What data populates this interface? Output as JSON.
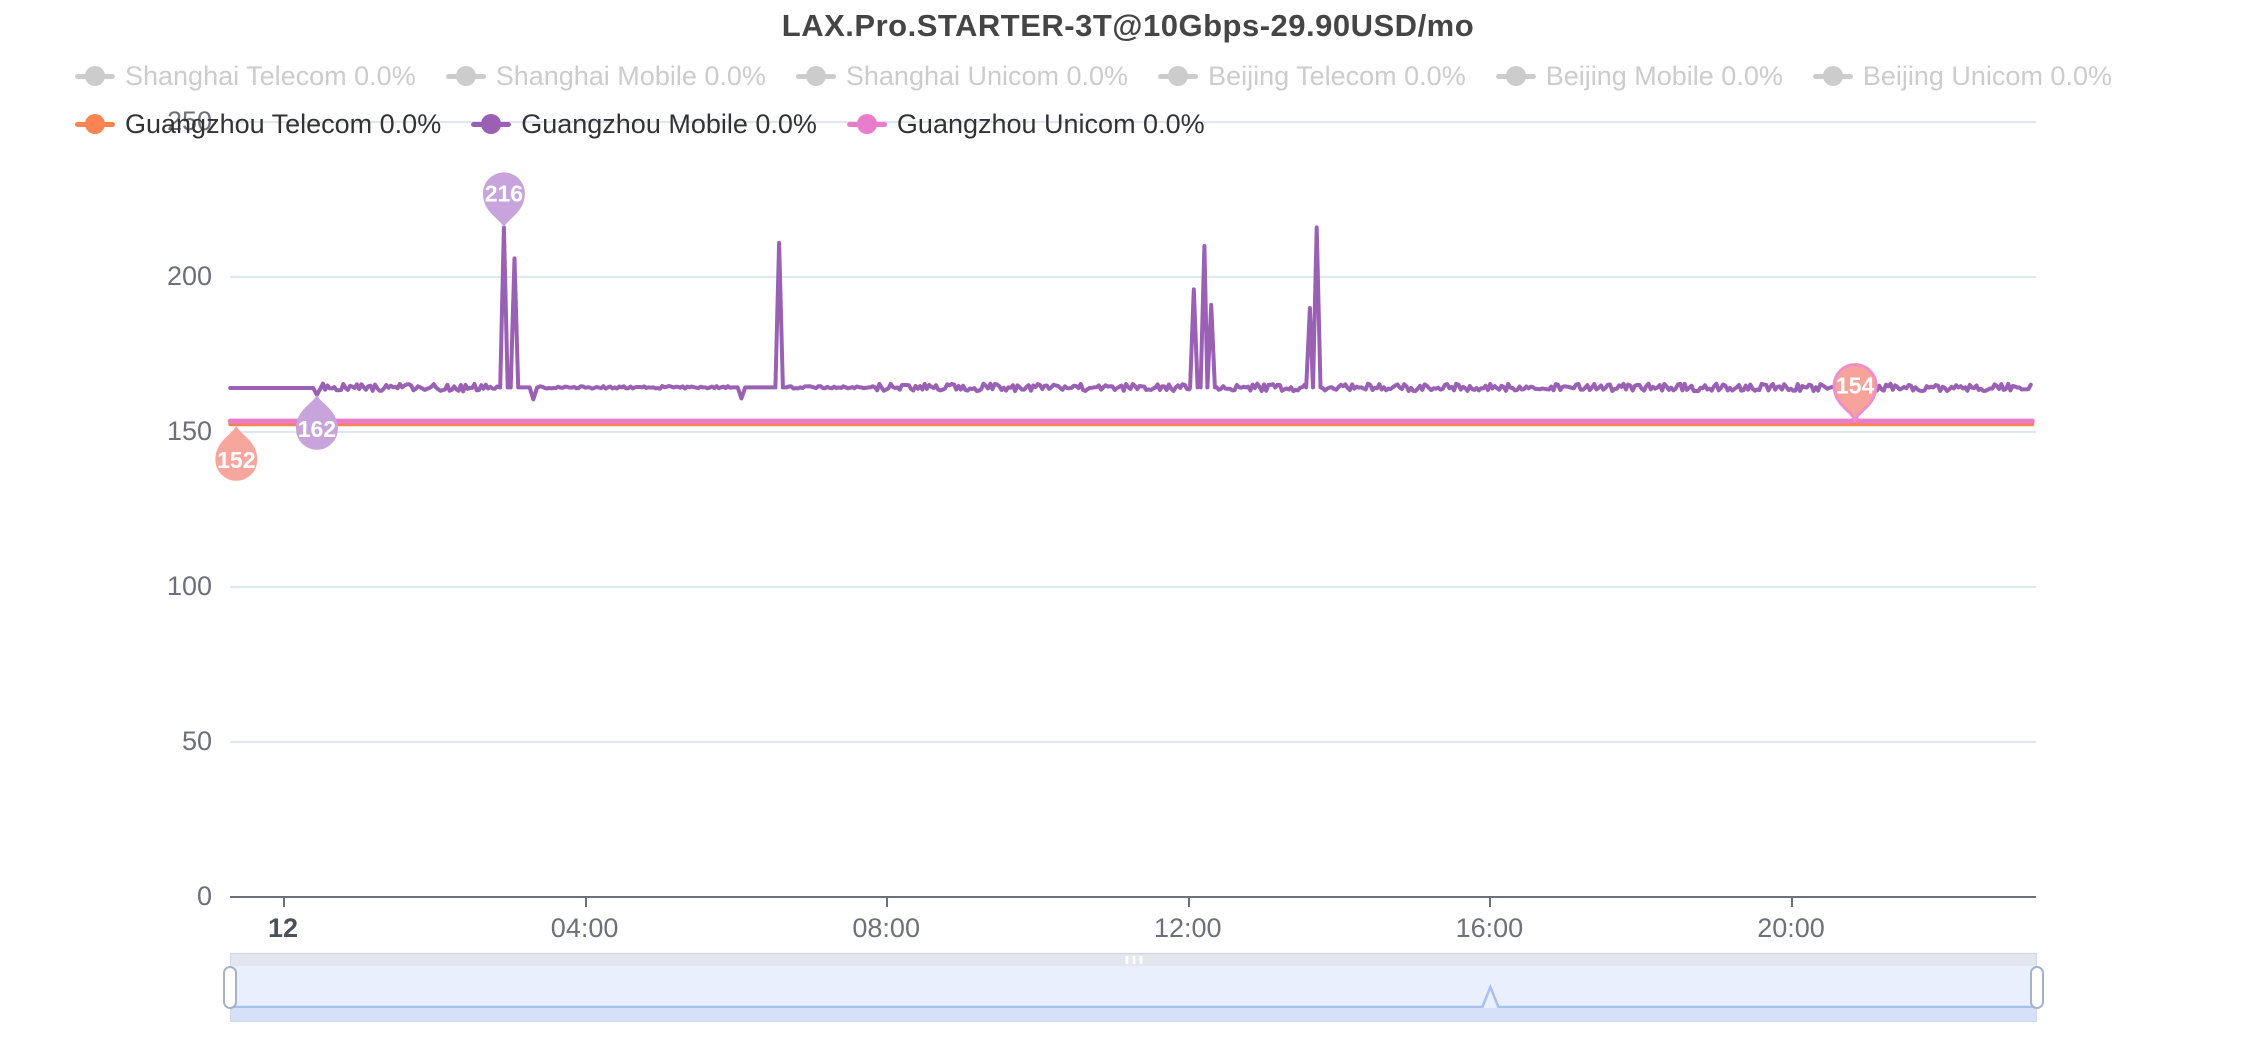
{
  "title": "LAX.Pro.STARTER-3T@10Gbps-29.90USD/mo",
  "colors": {
    "orange": "#fc8452",
    "purple": "#9a60b4",
    "pink": "#ea7ccc",
    "disabled": "#cccccc",
    "grid": "#e0e6f1",
    "axis": "#6e7079",
    "title_text": "#454545",
    "active_label": "#333333"
  },
  "legend": {
    "rows": [
      {
        "items": [
          {
            "label": "Shanghai Telecom 0.0%",
            "state": "disabled",
            "color": "#cccccc"
          },
          {
            "label": "Shanghai Mobile 0.0%",
            "state": "disabled",
            "color": "#cccccc"
          },
          {
            "label": "Shanghai Unicom 0.0%",
            "state": "disabled",
            "color": "#cccccc"
          },
          {
            "label": "Beijing Telecom 0.0%",
            "state": "disabled",
            "color": "#cccccc"
          },
          {
            "label": "Beijing Mobile 0.0%",
            "state": "disabled",
            "color": "#cccccc"
          },
          {
            "label": "Beijing Unicom 0.0%",
            "state": "disabled",
            "color": "#cccccc"
          }
        ]
      },
      {
        "items": [
          {
            "label": "Guangzhou Telecom 0.0%",
            "state": "active",
            "color": "#fc8452"
          },
          {
            "label": "Guangzhou Mobile 0.0%",
            "state": "active",
            "color": "#9a60b4"
          },
          {
            "label": "Guangzhou Unicom 0.0%",
            "state": "active",
            "color": "#ea7ccc"
          }
        ]
      }
    ]
  },
  "chart_data": {
    "type": "line",
    "title": "LAX.Pro.STARTER-3T@10Gbps-29.90USD/mo",
    "grid": true,
    "legend_position": "top",
    "y_axis": {
      "ticks": [
        0,
        50,
        100,
        150,
        200,
        250
      ],
      "range": [
        0,
        250
      ]
    },
    "x_axis": {
      "range_hours": [
        -0.7,
        23.2
      ],
      "ticks": [
        {
          "label": "12",
          "h": 0,
          "bold": true
        },
        {
          "label": "04:00",
          "h": 4,
          "bold": false
        },
        {
          "label": "08:00",
          "h": 8,
          "bold": false
        },
        {
          "label": "12:00",
          "h": 12,
          "bold": false
        },
        {
          "label": "16:00",
          "h": 16,
          "bold": false
        },
        {
          "label": "20:00",
          "h": 20,
          "bold": false
        }
      ]
    },
    "series": [
      {
        "name": "Shanghai Telecom",
        "loss": "0.0%",
        "visible": false
      },
      {
        "name": "Shanghai Mobile",
        "loss": "0.0%",
        "visible": false
      },
      {
        "name": "Shanghai Unicom",
        "loss": "0.0%",
        "visible": false
      },
      {
        "name": "Beijing Telecom",
        "loss": "0.0%",
        "visible": false
      },
      {
        "name": "Beijing Mobile",
        "loss": "0.0%",
        "visible": false
      },
      {
        "name": "Beijing Unicom",
        "loss": "0.0%",
        "visible": false
      },
      {
        "name": "Guangzhou Telecom",
        "loss": "0.0%",
        "visible": true,
        "color": "#fc8452",
        "baseline_ms": 152.5,
        "points": [
          [
            -0.7,
            152.5
          ],
          [
            23.2,
            152.5
          ]
        ],
        "min": 152
      },
      {
        "name": "Guangzhou Mobile",
        "loss": "0.0%",
        "visible": true,
        "color": "#9a60b4",
        "baseline_ms": 164.4,
        "min": 162,
        "max": 216,
        "levels": [
          {
            "from": -0.7,
            "to": 0.45,
            "v": 164.2
          },
          {
            "from": 0.45,
            "to": 23.2,
            "v": 164.4
          }
        ],
        "jitter": [
          {
            "from": 0.5,
            "to": 2.85,
            "amp": 1.3
          },
          {
            "from": 3.4,
            "to": 5.95,
            "amp": 0.45
          },
          {
            "from": 6.7,
            "to": 7.75,
            "amp": 0.4
          },
          {
            "from": 7.8,
            "to": 23.2,
            "amp": 1.2
          }
        ],
        "events": [
          {
            "h": 0.45,
            "v": 162
          },
          {
            "h": 2.93,
            "v": 216
          },
          {
            "h": 3.07,
            "v": 206
          },
          {
            "h": 3.32,
            "v": 160.5
          },
          {
            "h": 6.08,
            "v": 160.8
          },
          {
            "h": 6.58,
            "v": 211
          },
          {
            "h": 12.08,
            "v": 196
          },
          {
            "h": 12.22,
            "v": 210
          },
          {
            "h": 12.31,
            "v": 191
          },
          {
            "h": 13.62,
            "v": 190
          },
          {
            "h": 13.71,
            "v": 216
          }
        ]
      },
      {
        "name": "Guangzhou Unicom",
        "loss": "0.0%",
        "visible": true,
        "color": "#ea7ccc",
        "baseline_ms": 153.5,
        "max": 154,
        "points": [
          [
            -0.7,
            153.5
          ],
          [
            20.8,
            153.5
          ],
          [
            20.85,
            154
          ],
          [
            20.9,
            153.5
          ],
          [
            23.2,
            153.5
          ]
        ]
      }
    ],
    "markers": [
      {
        "series": "Guangzhou Mobile",
        "type": "max",
        "value": 216,
        "h": 2.93,
        "fill": "#c7a4db"
      },
      {
        "series": "Guangzhou Mobile",
        "type": "min",
        "value": 162,
        "h": 0.45,
        "fill": "#c7a4db"
      },
      {
        "series": "Guangzhou Telecom",
        "type": "min",
        "value": 152,
        "h": -0.62,
        "fill": "#f7a69d"
      },
      {
        "series": "Guangzhou Unicom",
        "type": "max",
        "value": 154,
        "h": 20.85,
        "fill": "#f7a29b",
        "stroke": "#ee8fc8"
      }
    ]
  },
  "slider": {
    "selected_range": "full",
    "spike_h": 16,
    "colors": {
      "bg": "#e9effd",
      "strip": "#e3e6ee",
      "band": "#d6e0f6",
      "border": "#c9d8f3",
      "handle_border": "#a6b3c6",
      "line": "#a8c0ec"
    }
  }
}
